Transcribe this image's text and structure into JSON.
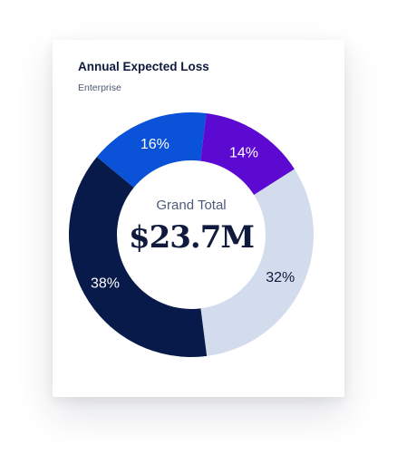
{
  "card": {
    "title": "Annual Expected Loss",
    "subtitle": "Enterprise"
  },
  "chart_data": {
    "type": "pie",
    "donut": true,
    "center": {
      "label": "Grand Total",
      "value": "$23.7M"
    },
    "slices": [
      {
        "label": "32%",
        "value": 32,
        "color": "#d3dced",
        "text_color": "#0f1a3d"
      },
      {
        "label": "38%",
        "value": 38,
        "color": "#071a4a",
        "text_color": "#ffffff"
      },
      {
        "label": "16%",
        "value": 16,
        "color": "#0a52d8",
        "text_color": "#ffffff"
      },
      {
        "label": "14%",
        "value": 14,
        "color": "#5c0ad2",
        "text_color": "#ffffff"
      }
    ],
    "legend": "none"
  }
}
